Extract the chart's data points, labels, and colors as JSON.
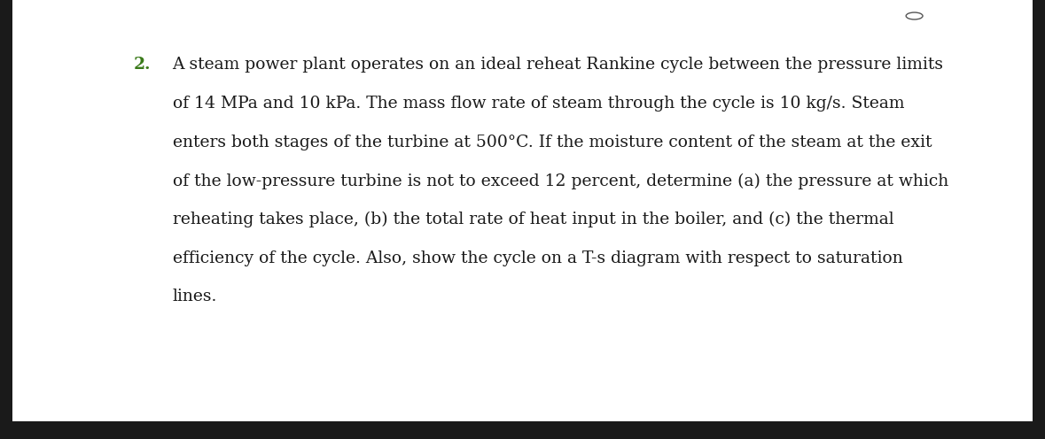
{
  "background_color": "#ffffff",
  "border_color": "#1a1a1a",
  "text_color": "#1a1a1a",
  "number_color": "#3a7a1a",
  "number": "2.",
  "font_size": 13.5,
  "font_family": "DejaVu Serif",
  "lines": [
    "A steam power plant operates on an ideal reheat Rankine cycle between the pressure limits",
    "of 14 MPa and 10 kPa. The mass flow rate of steam through the cycle is 10 kg/s. Steam",
    "enters both stages of the turbine at 500°C. If the moisture content of the steam at the exit",
    "of the low-pressure turbine is not to exceed 12 percent, determine (a) the pressure at which",
    "reheating takes place, (b) the total rate of heat input in the boiler, and (c) the thermal",
    "efficiency of the cycle. Also, show the cycle on a T-s diagram with respect to saturation",
    "lines."
  ],
  "figwidth": 11.79,
  "figheight": 4.96,
  "dpi": 100
}
